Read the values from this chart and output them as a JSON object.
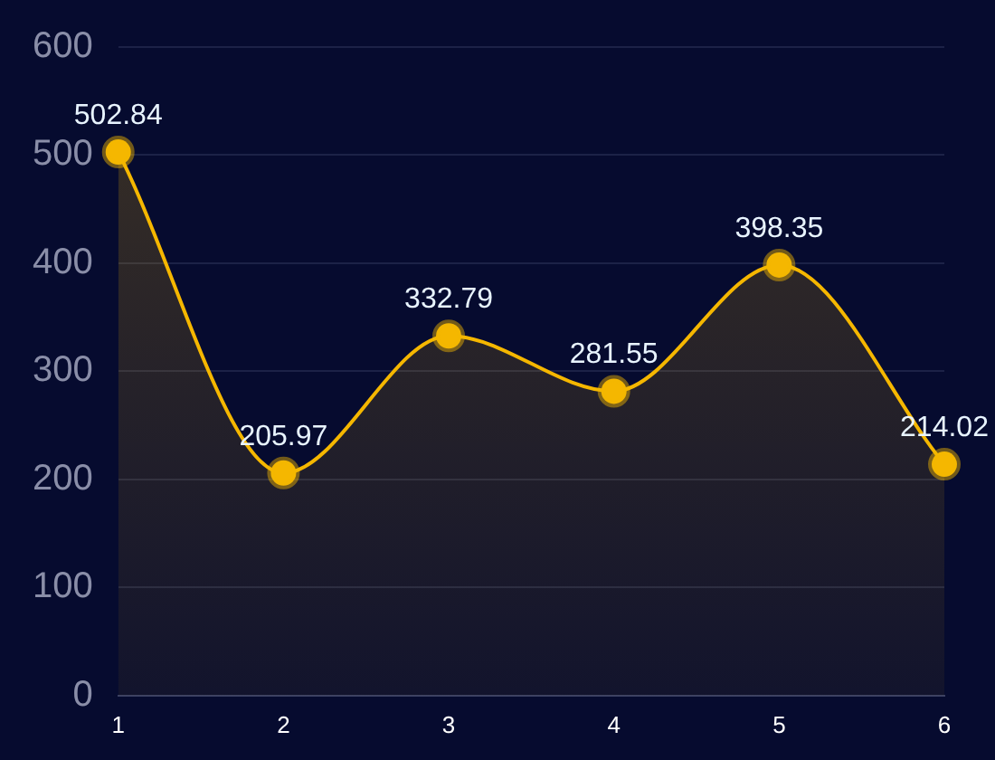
{
  "chart_data": {
    "type": "area",
    "categories": [
      "1",
      "2",
      "3",
      "4",
      "5",
      "6"
    ],
    "series": [
      {
        "color": "#f5b700",
        "values": [
          502.84,
          205.97,
          332.79,
          281.55,
          398.35,
          214.02
        ]
      }
    ],
    "ylim": [
      0,
      600
    ],
    "yticks": [
      0,
      100,
      200,
      300,
      400,
      500,
      600
    ],
    "grid": "y",
    "data_labels": true,
    "marker": "circle"
  }
}
